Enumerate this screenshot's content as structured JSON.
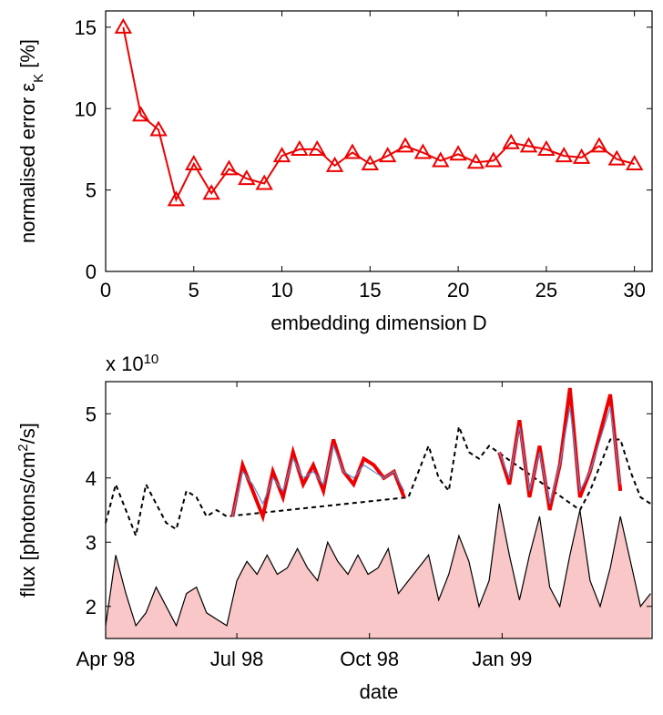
{
  "chart_data": [
    {
      "type": "line",
      "xlabel": "embedding dimension D",
      "ylabel": "normalised error ε",
      "ylabel_sub": "K",
      "ylabel_suffix": " [%]",
      "xlim": [
        0,
        31
      ],
      "ylim": [
        0,
        16
      ],
      "xticks": [
        0,
        5,
        10,
        15,
        20,
        25,
        30
      ],
      "yticks": [
        0,
        5,
        10,
        15
      ],
      "grid": false,
      "color": "#ee0000",
      "marker": "triangle",
      "x": [
        1,
        2,
        3,
        4,
        5,
        6,
        7,
        8,
        9,
        10,
        11,
        12,
        13,
        14,
        15,
        16,
        17,
        18,
        19,
        20,
        21,
        22,
        23,
        24,
        25,
        26,
        27,
        28,
        29,
        30
      ],
      "y": [
        15.0,
        9.6,
        8.7,
        4.4,
        6.6,
        4.8,
        6.3,
        5.7,
        5.4,
        7.1,
        7.5,
        7.5,
        6.5,
        7.3,
        6.6,
        7.1,
        7.7,
        7.3,
        6.8,
        7.2,
        6.7,
        6.8,
        7.9,
        7.7,
        7.5,
        7.1,
        7.0,
        7.7,
        6.9,
        6.6
      ]
    },
    {
      "type": "area",
      "xlabel": "date",
      "ylabel": "flux [photons/cm",
      "ylabel_sup": "2",
      "ylabel_suffix": "/s]",
      "multiplier_base": "x 10",
      "multiplier_exp": "10",
      "xticks": [
        {
          "label": "Apr 98"
        },
        {
          "label": "Jul 98"
        },
        {
          "label": "Oct 98"
        },
        {
          "label": "Jan 99"
        }
      ],
      "xlim": [
        "1998-04-01",
        "1999-04-15"
      ],
      "ylim": [
        1.5,
        5.5
      ],
      "yticks": [
        2,
        3,
        4,
        5
      ],
      "grid": false,
      "series": [
        {
          "style": "filled-area-black-outline",
          "fill": "#f9c7c7",
          "x": [
            "1998-04-01",
            "1998-04-08",
            "1998-04-15",
            "1998-04-22",
            "1998-04-29",
            "1998-05-06",
            "1998-05-13",
            "1998-05-20",
            "1998-05-27",
            "1998-06-03",
            "1998-06-10",
            "1998-06-17",
            "1998-06-24",
            "1998-07-01",
            "1998-07-08",
            "1998-07-15",
            "1998-07-22",
            "1998-07-29",
            "1998-08-05",
            "1998-08-12",
            "1998-08-19",
            "1998-08-26",
            "1998-09-02",
            "1998-09-09",
            "1998-09-16",
            "1998-09-23",
            "1998-09-30",
            "1998-10-07",
            "1998-10-14",
            "1998-10-21",
            "1998-10-28",
            "1998-11-04",
            "1998-11-11",
            "1998-11-18",
            "1998-11-25",
            "1998-12-02",
            "1998-12-09",
            "1998-12-16",
            "1998-12-23",
            "1998-12-30",
            "1999-01-06",
            "1999-01-13",
            "1999-01-20",
            "1999-01-27",
            "1999-02-03",
            "1999-02-10",
            "1999-02-17",
            "1999-02-24",
            "1999-03-03",
            "1999-03-10",
            "1999-03-17",
            "1999-03-24",
            "1999-03-31",
            "1999-04-07",
            "1999-04-14"
          ],
          "y": [
            1.7,
            2.8,
            2.2,
            1.7,
            1.9,
            2.3,
            2.0,
            1.7,
            2.2,
            2.3,
            1.9,
            1.8,
            1.7,
            2.4,
            2.7,
            2.5,
            2.8,
            2.5,
            2.6,
            2.9,
            2.6,
            2.4,
            3.0,
            2.7,
            2.5,
            2.8,
            2.5,
            2.6,
            2.9,
            2.2,
            2.4,
            2.6,
            2.8,
            2.1,
            2.5,
            3.1,
            2.7,
            2.0,
            2.4,
            3.6,
            2.8,
            2.1,
            2.8,
            3.4,
            2.3,
            2.0,
            2.8,
            3.5,
            2.4,
            2.0,
            2.6,
            3.4,
            2.7,
            2.0,
            2.2
          ]
        },
        {
          "style": "dashed-black",
          "x": [
            "1998-04-01",
            "1998-04-08",
            "1998-04-15",
            "1998-04-22",
            "1998-04-29",
            "1998-05-06",
            "1998-05-13",
            "1998-05-20",
            "1998-05-27",
            "1998-06-03",
            "1998-06-10",
            "1998-06-17",
            "1998-06-24",
            "1998-10-28",
            "1998-11-04",
            "1998-11-11",
            "1998-11-18",
            "1998-11-25",
            "1998-12-02",
            "1998-12-09",
            "1998-12-16",
            "1998-12-23",
            "1999-02-24",
            "1999-03-03",
            "1999-03-10",
            "1999-03-17",
            "1999-03-24",
            "1999-03-31",
            "1999-04-07",
            "1999-04-14"
          ],
          "y": [
            3.3,
            3.9,
            3.5,
            3.1,
            3.9,
            3.6,
            3.3,
            3.2,
            3.8,
            3.7,
            3.4,
            3.5,
            3.4,
            3.7,
            4.1,
            4.5,
            4.0,
            3.8,
            4.8,
            4.4,
            4.3,
            4.5,
            3.5,
            3.8,
            4.2,
            4.6,
            4.6,
            4.1,
            3.7,
            3.6
          ]
        },
        {
          "style": "thick-red",
          "x": [
            "1998-06-28",
            "1998-07-05",
            "1998-07-12",
            "1998-07-19",
            "1998-07-26",
            "1998-08-02",
            "1998-08-09",
            "1998-08-16",
            "1998-08-23",
            "1998-08-30",
            "1998-09-06",
            "1998-09-13",
            "1998-09-20",
            "1998-09-27",
            "1998-10-04",
            "1998-10-11",
            "1998-10-18",
            "1998-10-25"
          ],
          "y": [
            3.4,
            4.2,
            3.8,
            3.4,
            4.1,
            3.7,
            4.4,
            3.9,
            4.2,
            3.8,
            4.6,
            4.1,
            3.9,
            4.3,
            4.2,
            4.0,
            4.1,
            3.7
          ]
        },
        {
          "style": "thin-blue",
          "x": [
            "1998-06-28",
            "1998-07-05",
            "1998-07-12",
            "1998-07-19",
            "1998-07-26",
            "1998-08-02",
            "1998-08-09",
            "1998-08-16",
            "1998-08-23",
            "1998-08-30",
            "1998-09-06",
            "1998-09-13",
            "1998-09-20",
            "1998-09-27",
            "1998-10-04",
            "1998-10-11",
            "1998-10-18",
            "1998-10-25"
          ],
          "y": [
            3.4,
            4.1,
            3.9,
            3.6,
            4.0,
            3.8,
            4.3,
            4.0,
            4.1,
            3.9,
            4.5,
            4.1,
            4.0,
            4.2,
            4.1,
            4.0,
            4.1,
            3.8
          ]
        },
        {
          "style": "thick-red",
          "x": [
            "1998-12-30",
            "1999-01-06",
            "1999-01-13",
            "1999-01-20",
            "1999-01-27",
            "1999-02-03",
            "1999-02-10",
            "1999-02-17",
            "1999-02-24",
            "1999-03-03",
            "1999-03-10",
            "1999-03-17",
            "1999-03-24"
          ],
          "y": [
            4.4,
            3.9,
            4.9,
            3.7,
            4.5,
            3.5,
            4.2,
            5.4,
            3.7,
            4.1,
            4.7,
            5.3,
            3.8
          ]
        },
        {
          "style": "thin-blue",
          "x": [
            "1998-12-30",
            "1999-01-06",
            "1999-01-13",
            "1999-01-20",
            "1999-01-27",
            "1999-02-03",
            "1999-02-10",
            "1999-02-17",
            "1999-02-24",
            "1999-03-03",
            "1999-03-10",
            "1999-03-17",
            "1999-03-24"
          ],
          "y": [
            4.4,
            4.0,
            4.8,
            3.8,
            4.4,
            3.6,
            4.2,
            5.1,
            3.8,
            4.1,
            4.6,
            5.1,
            3.9
          ]
        }
      ]
    }
  ]
}
